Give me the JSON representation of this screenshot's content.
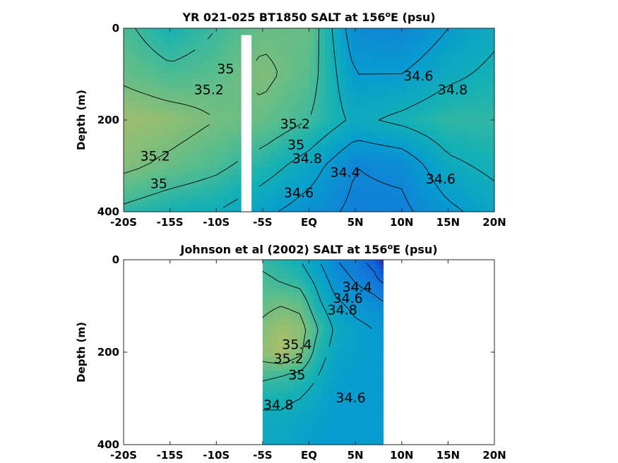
{
  "chart_data": [
    {
      "type": "heatmap",
      "title": {
        "prefix": "YR 021-025 BT1850 SALT at 156",
        "sup": "o",
        "suffix": "E (psu)"
      },
      "ylabel": "Depth (m)",
      "xlim": [
        -20,
        20
      ],
      "ylim": [
        0,
        400
      ],
      "xtick_labels": [
        "-20S",
        "-15S",
        "-10S",
        "-5S",
        "EQ",
        "5N",
        "10N",
        "15N",
        "20N"
      ],
      "xticks": [
        -20,
        -15,
        -10,
        -5,
        0,
        5,
        10,
        15,
        20
      ],
      "ytick_labels": [
        "0",
        "200",
        "400"
      ],
      "yticks": [
        0,
        200,
        400
      ],
      "data_gap": {
        "x_range": [
          -7.3,
          -6.2
        ],
        "y_range": [
          15,
          400
        ]
      },
      "contour_labels": [
        {
          "text": "35",
          "x": -9.0,
          "y": 90
        },
        {
          "text": "35.2",
          "x": -10.8,
          "y": 135
        },
        {
          "text": "35.2",
          "x": -16.6,
          "y": 280
        },
        {
          "text": "35",
          "x": -16.2,
          "y": 340
        },
        {
          "text": "35.2",
          "x": -1.5,
          "y": 210
        },
        {
          "text": "35",
          "x": -1.4,
          "y": 255
        },
        {
          "text": "34.8",
          "x": -0.2,
          "y": 285
        },
        {
          "text": "34.4",
          "x": 3.9,
          "y": 315
        },
        {
          "text": "34.6",
          "x": -1.1,
          "y": 360
        },
        {
          "text": "34.6",
          "x": 11.8,
          "y": 105
        },
        {
          "text": "34.8",
          "x": 15.5,
          "y": 135
        },
        {
          "text": "34.6",
          "x": 14.2,
          "y": 330
        }
      ],
      "salinity_field_psu": {
        "x": [
          -20,
          -15,
          -10,
          -5,
          0,
          5,
          10,
          15,
          20
        ],
        "depth": [
          0,
          100,
          200,
          300,
          400
        ],
        "values": [
          [
            35.05,
            34.85,
            35.0,
            35.15,
            35.15,
            34.45,
            34.4,
            34.6,
            34.75
          ],
          [
            35.15,
            35.05,
            35.1,
            35.25,
            35.1,
            34.6,
            34.6,
            34.75,
            34.85
          ],
          [
            35.35,
            35.3,
            35.2,
            35.15,
            35.0,
            34.75,
            34.85,
            34.95,
            34.95
          ],
          [
            35.25,
            35.15,
            35.05,
            34.9,
            34.7,
            34.4,
            34.45,
            34.75,
            34.85
          ],
          [
            34.95,
            34.85,
            34.8,
            34.65,
            34.5,
            34.35,
            34.35,
            34.55,
            34.7
          ]
        ]
      }
    },
    {
      "type": "heatmap",
      "title": {
        "prefix": "Johnson et al (2002) SALT at 156",
        "sup": "o",
        "suffix": "E (psu)"
      },
      "ylabel": "Depth (m)",
      "xlim": [
        -20,
        20
      ],
      "ylim": [
        0,
        400
      ],
      "xtick_labels": [
        "-20S",
        "-15S",
        "-10S",
        "-5S",
        "EQ",
        "5N",
        "10N",
        "15N",
        "20N"
      ],
      "xticks": [
        -20,
        -15,
        -10,
        -5,
        0,
        5,
        10,
        15,
        20
      ],
      "ytick_labels": [
        "0",
        "200",
        "400"
      ],
      "yticks": [
        0,
        200,
        400
      ],
      "data_extent_x": [
        -5,
        8
      ],
      "contour_labels": [
        {
          "text": "34.4",
          "x": 5.2,
          "y": 60
        },
        {
          "text": "34.6",
          "x": 4.2,
          "y": 85
        },
        {
          "text": "34.8",
          "x": 3.6,
          "y": 110
        },
        {
          "text": "35.4",
          "x": -1.3,
          "y": 185
        },
        {
          "text": "35.2",
          "x": -2.2,
          "y": 215
        },
        {
          "text": "35",
          "x": -1.3,
          "y": 250
        },
        {
          "text": "34.8",
          "x": -3.3,
          "y": 315
        },
        {
          "text": "34.6",
          "x": 4.5,
          "y": 300
        }
      ],
      "salinity_field_psu": {
        "x": [
          -5,
          -3,
          -1,
          1,
          3,
          5,
          7,
          8
        ],
        "depth": [
          0,
          50,
          100,
          150,
          200,
          250,
          300,
          350,
          400
        ],
        "values": [
          [
            34.95,
            34.9,
            34.8,
            34.6,
            34.4,
            34.3,
            34.1,
            33.8
          ],
          [
            35.05,
            35.0,
            34.95,
            34.75,
            34.5,
            34.4,
            34.3,
            34.2
          ],
          [
            35.15,
            35.2,
            35.15,
            34.85,
            34.65,
            34.55,
            34.5,
            34.45
          ],
          [
            35.25,
            35.35,
            35.3,
            35.0,
            34.75,
            34.65,
            34.6,
            34.55
          ],
          [
            35.3,
            35.4,
            35.25,
            34.9,
            34.7,
            34.65,
            34.6,
            34.6
          ],
          [
            35.05,
            35.0,
            34.95,
            34.8,
            34.65,
            34.6,
            34.6,
            34.6
          ],
          [
            34.85,
            34.85,
            34.8,
            34.7,
            34.6,
            34.6,
            34.6,
            34.6
          ],
          [
            34.75,
            34.75,
            34.7,
            34.65,
            34.6,
            34.6,
            34.6,
            34.6
          ],
          [
            34.7,
            34.7,
            34.65,
            34.6,
            34.6,
            34.6,
            34.6,
            34.6
          ]
        ]
      }
    }
  ]
}
